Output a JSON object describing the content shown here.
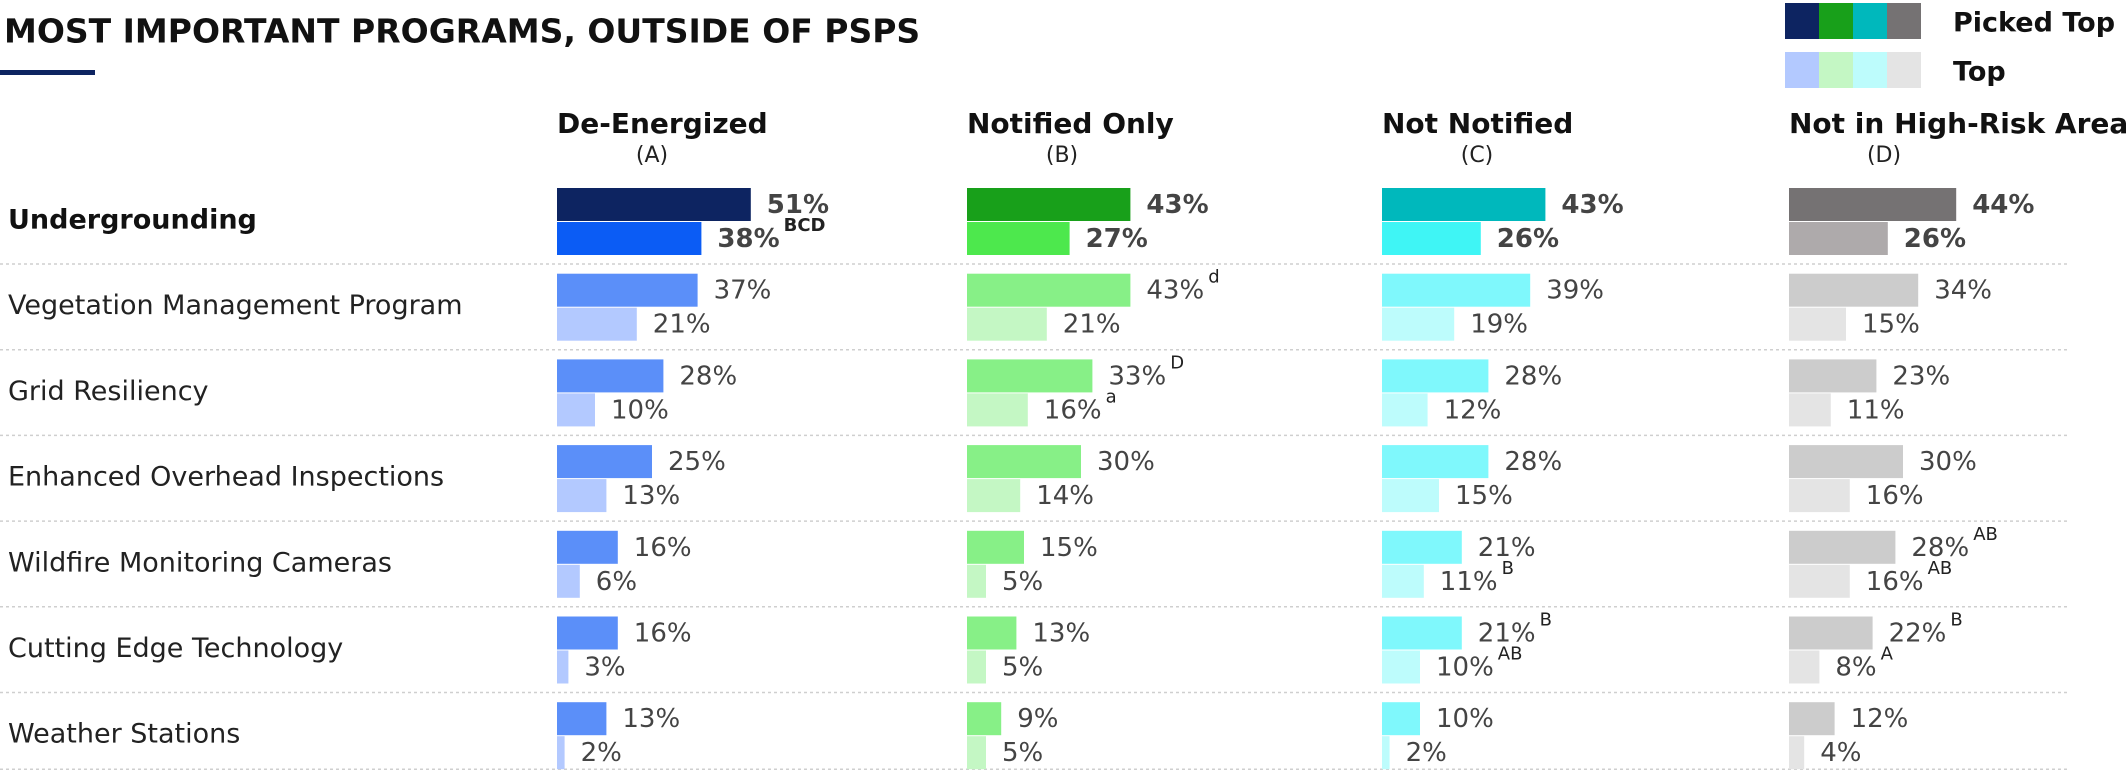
{
  "title": "MOST IMPORTANT PROGRAMS, OUTSIDE OF PSPS",
  "chart_data": [
    {
      "type": "bar",
      "title": "De-Energized",
      "subtitle": "(A)",
      "xlim": [
        0,
        100
      ],
      "categories": [
        "Undergrounding",
        "Vegetation Management Program",
        "Grid Resiliency",
        "Enhanced Overhead Inspections",
        "Wildfire Monitoring Cameras",
        "Cutting Edge Technology",
        "Weather Stations"
      ],
      "series": [
        {
          "name": "Picked Top 2",
          "colors": [
            "#0d2461",
            "#5b8ff9",
            "#5b8ff9",
            "#5b8ff9",
            "#5b8ff9",
            "#5b8ff9",
            "#5b8ff9"
          ],
          "values": [
            51,
            37,
            28,
            25,
            16,
            16,
            13
          ],
          "value_labels": [
            "51%",
            "37%",
            "28%",
            "25%",
            "16%",
            "16%",
            "13%"
          ],
          "notes": [
            null,
            null,
            null,
            null,
            null,
            null,
            null
          ]
        },
        {
          "name": "Top",
          "colors": [
            "#0b5cf5",
            "#b3c9ff",
            "#b3c9ff",
            "#b3c9ff",
            "#b3c9ff",
            "#b3c9ff",
            "#b3c9ff"
          ],
          "values": [
            38,
            21,
            10,
            13,
            6,
            3,
            2
          ],
          "value_labels": [
            "38%",
            "21%",
            "10%",
            "13%",
            "6%",
            "3%",
            "2%"
          ],
          "notes": [
            "BCD",
            null,
            null,
            null,
            null,
            null,
            null
          ]
        }
      ]
    },
    {
      "type": "bar",
      "title": "Notified Only",
      "subtitle": "(B)",
      "xlim": [
        0,
        100
      ],
      "series": [
        {
          "colors": [
            "#18a01a",
            "#87f087",
            "#87f087",
            "#87f087",
            "#87f087",
            "#87f087",
            "#87f087"
          ],
          "values": [
            43,
            43,
            33,
            30,
            15,
            13,
            9
          ],
          "value_labels": [
            "43%",
            "43%",
            "33%",
            "30%",
            "15%",
            "13%",
            "9%"
          ],
          "notes": [
            null,
            "d",
            "D",
            null,
            null,
            null,
            null
          ]
        },
        {
          "colors": [
            "#4de84d",
            "#c4f7c4",
            "#c4f7c4",
            "#c4f7c4",
            "#c4f7c4",
            "#c4f7c4",
            "#c4f7c4"
          ],
          "values": [
            27,
            21,
            16,
            14,
            5,
            5,
            5
          ],
          "value_labels": [
            "27%",
            "21%",
            "16%",
            "14%",
            "5%",
            "5%",
            "5%"
          ],
          "notes": [
            null,
            null,
            "a",
            null,
            null,
            null,
            null
          ]
        }
      ]
    },
    {
      "type": "bar",
      "title": "Not Notified",
      "subtitle": "(C)",
      "xlim": [
        0,
        100
      ],
      "series": [
        {
          "colors": [
            "#00b8bc",
            "#7ff8fc",
            "#7ff8fc",
            "#7ff8fc",
            "#7ff8fc",
            "#7ff8fc",
            "#7ff8fc"
          ],
          "values": [
            43,
            39,
            28,
            28,
            21,
            21,
            10
          ],
          "value_labels": [
            "43%",
            "39%",
            "28%",
            "28%",
            "21%",
            "21%",
            "10%"
          ],
          "notes": [
            null,
            null,
            null,
            null,
            null,
            "B",
            null
          ]
        },
        {
          "colors": [
            "#3ff5f5",
            "#bdfcfc",
            "#bdfcfc",
            "#bdfcfc",
            "#bdfcfc",
            "#bdfcfc",
            "#bdfcfc"
          ],
          "values": [
            26,
            19,
            12,
            15,
            11,
            10,
            2
          ],
          "value_labels": [
            "26%",
            "19%",
            "12%",
            "15%",
            "11%",
            "10%",
            "2%"
          ],
          "notes": [
            null,
            null,
            null,
            null,
            "B",
            "AB",
            null
          ]
        }
      ]
    },
    {
      "type": "bar",
      "title": "Not in High-Risk Area",
      "subtitle": "(D)",
      "xlim": [
        0,
        100
      ],
      "series": [
        {
          "colors": [
            "#757273",
            "#cccccc",
            "#cccccc",
            "#cccccc",
            "#cccccc",
            "#cccccc",
            "#cccccc"
          ],
          "values": [
            44,
            34,
            23,
            30,
            28,
            22,
            12
          ],
          "value_labels": [
            "44%",
            "34%",
            "23%",
            "30%",
            "28%",
            "22%",
            "12%"
          ],
          "notes": [
            null,
            null,
            null,
            null,
            "AB",
            "B",
            null
          ]
        },
        {
          "colors": [
            "#aeaaab",
            "#e4e4e4",
            "#e4e4e4",
            "#e4e4e4",
            "#e4e4e4",
            "#e4e4e4",
            "#e4e4e4"
          ],
          "values": [
            26,
            15,
            11,
            16,
            16,
            8,
            4
          ],
          "value_labels": [
            "26%",
            "15%",
            "11%",
            "16%",
            "16%",
            "8%",
            "4%"
          ],
          "notes": [
            null,
            null,
            null,
            null,
            "AB",
            "A",
            null
          ]
        }
      ]
    }
  ]
}
